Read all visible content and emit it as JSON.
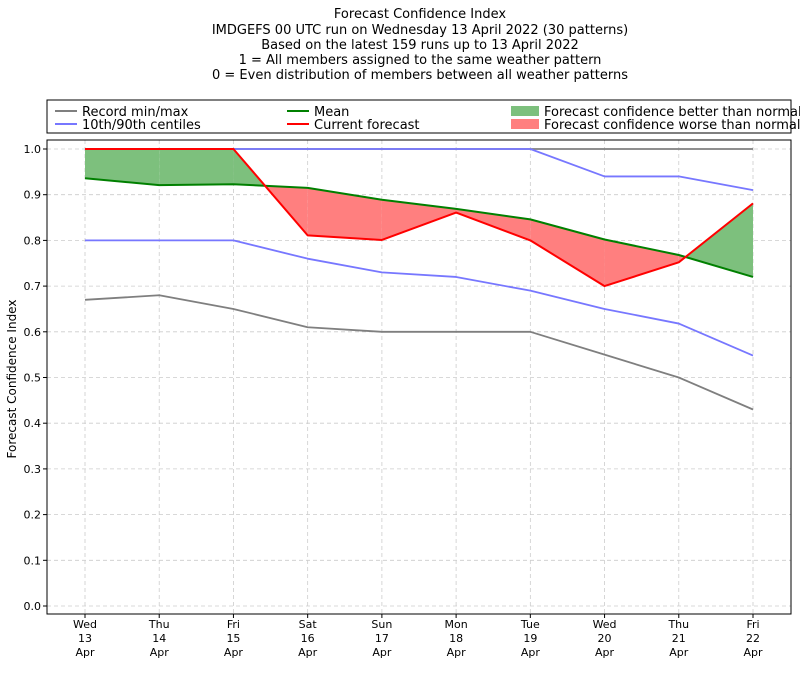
{
  "chart_data": {
    "type": "line",
    "title_lines": [
      "Forecast Confidence Index",
      "IMDGEFS 00 UTC run on Wednesday 13 April 2022 (30 patterns)",
      "Based on the latest 159 runs up to 13 April 2022",
      "1 = All members assigned to the same weather pattern",
      "0 = Even distribution of members between all weather patterns"
    ],
    "ylabel": "Forecast Confidence Index",
    "ylim": [
      0,
      1.0
    ],
    "yticks": [
      "0.0",
      "0.1",
      "0.2",
      "0.3",
      "0.4",
      "0.5",
      "0.6",
      "0.7",
      "0.8",
      "0.9",
      "1.0"
    ],
    "grid": true,
    "legend_placement": "top",
    "categories": [
      [
        "Wed",
        "13",
        "Apr"
      ],
      [
        "Thu",
        "14",
        "Apr"
      ],
      [
        "Fri",
        "15",
        "Apr"
      ],
      [
        "Sat",
        "16",
        "Apr"
      ],
      [
        "Sun",
        "17",
        "Apr"
      ],
      [
        "Mon",
        "18",
        "Apr"
      ],
      [
        "Tue",
        "19",
        "Apr"
      ],
      [
        "Wed",
        "20",
        "Apr"
      ],
      [
        "Thu",
        "21",
        "Apr"
      ],
      [
        "Fri",
        "22",
        "Apr"
      ]
    ],
    "series": [
      {
        "key": "record_min",
        "color": "#7f7f7f",
        "values": [
          0.67,
          0.68,
          0.65,
          0.61,
          0.6,
          0.6,
          0.6,
          0.55,
          0.5,
          0.43
        ]
      },
      {
        "key": "record_max",
        "color": "#7f7f7f",
        "values": [
          1.0,
          1.0,
          1.0,
          1.0,
          1.0,
          1.0,
          1.0,
          1.0,
          1.0,
          1.0
        ]
      },
      {
        "key": "p10",
        "color": "#7777ff",
        "values": [
          0.8,
          0.8,
          0.8,
          0.76,
          0.73,
          0.72,
          0.69,
          0.65,
          0.618,
          0.548
        ]
      },
      {
        "key": "p90",
        "color": "#7777ff",
        "values": [
          1.0,
          1.0,
          1.0,
          1.0,
          1.0,
          1.0,
          1.0,
          0.94,
          0.94,
          0.91
        ]
      },
      {
        "key": "mean",
        "color": "#008000",
        "values": [
          0.936,
          0.921,
          0.923,
          0.915,
          0.889,
          0.869,
          0.846,
          0.802,
          0.768,
          0.72
        ]
      },
      {
        "key": "current",
        "color": "#ff0000",
        "values": [
          1.0,
          1.0,
          1.0,
          0.811,
          0.801,
          0.861,
          0.8,
          0.7,
          0.752,
          0.881
        ]
      }
    ],
    "fills": {
      "better_color": "#7dc07d",
      "worse_color": "#ff7f7f"
    },
    "legend": [
      {
        "label": "Record min/max",
        "kind": "line",
        "color": "#7f7f7f"
      },
      {
        "label": "Mean",
        "kind": "line",
        "color": "#008000"
      },
      {
        "label": "Forecast confidence better than normal",
        "kind": "patch",
        "color": "#7dc07d"
      },
      {
        "label": "10th/90th centiles",
        "kind": "line",
        "color": "#7777ff"
      },
      {
        "label": "Current forecast",
        "kind": "line",
        "color": "#ff0000"
      },
      {
        "label": "Forecast confidence worse than normal",
        "kind": "patch",
        "color": "#ff7f7f"
      }
    ]
  }
}
